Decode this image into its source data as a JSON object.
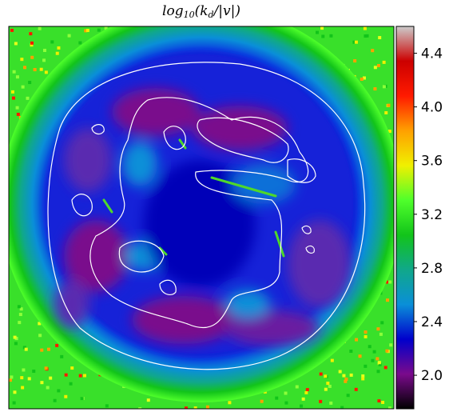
{
  "chart_data": {
    "type": "heatmap",
    "title_parts": {
      "prefix": "log",
      "sub": "10",
      "mid": "(k",
      "sub2": "d",
      "suffix": "/|v|)"
    },
    "title": "log10(kd/|v|)",
    "colorbar": {
      "colormap": "nipy_spectral",
      "range": [
        1.75,
        4.6
      ],
      "ticks": [
        2.0,
        2.4,
        2.8,
        3.2,
        3.6,
        4.0,
        4.4
      ],
      "tick_labels": [
        "2.0",
        "2.4",
        "2.8",
        "3.2",
        "3.6",
        "4.0",
        "4.4"
      ],
      "colors": [
        "#000000",
        "#7a0a8c",
        "#0000cc",
        "#0a8fd8",
        "#10a88a",
        "#12c41a",
        "#4fff2b",
        "#f0f000",
        "#ffa000",
        "#ff1a00",
        "#cc0000",
        "#cccccc"
      ]
    },
    "field": {
      "description_values": {
        "outer_edge": 3.4,
        "green_ring": 3.1,
        "cyan_ring": 2.7,
        "inner_disc_blue": 2.15,
        "purple_patches": 1.95
      }
    },
    "axes": {
      "xticks": [],
      "yticks": []
    },
    "contour_color": "#ffffff"
  }
}
